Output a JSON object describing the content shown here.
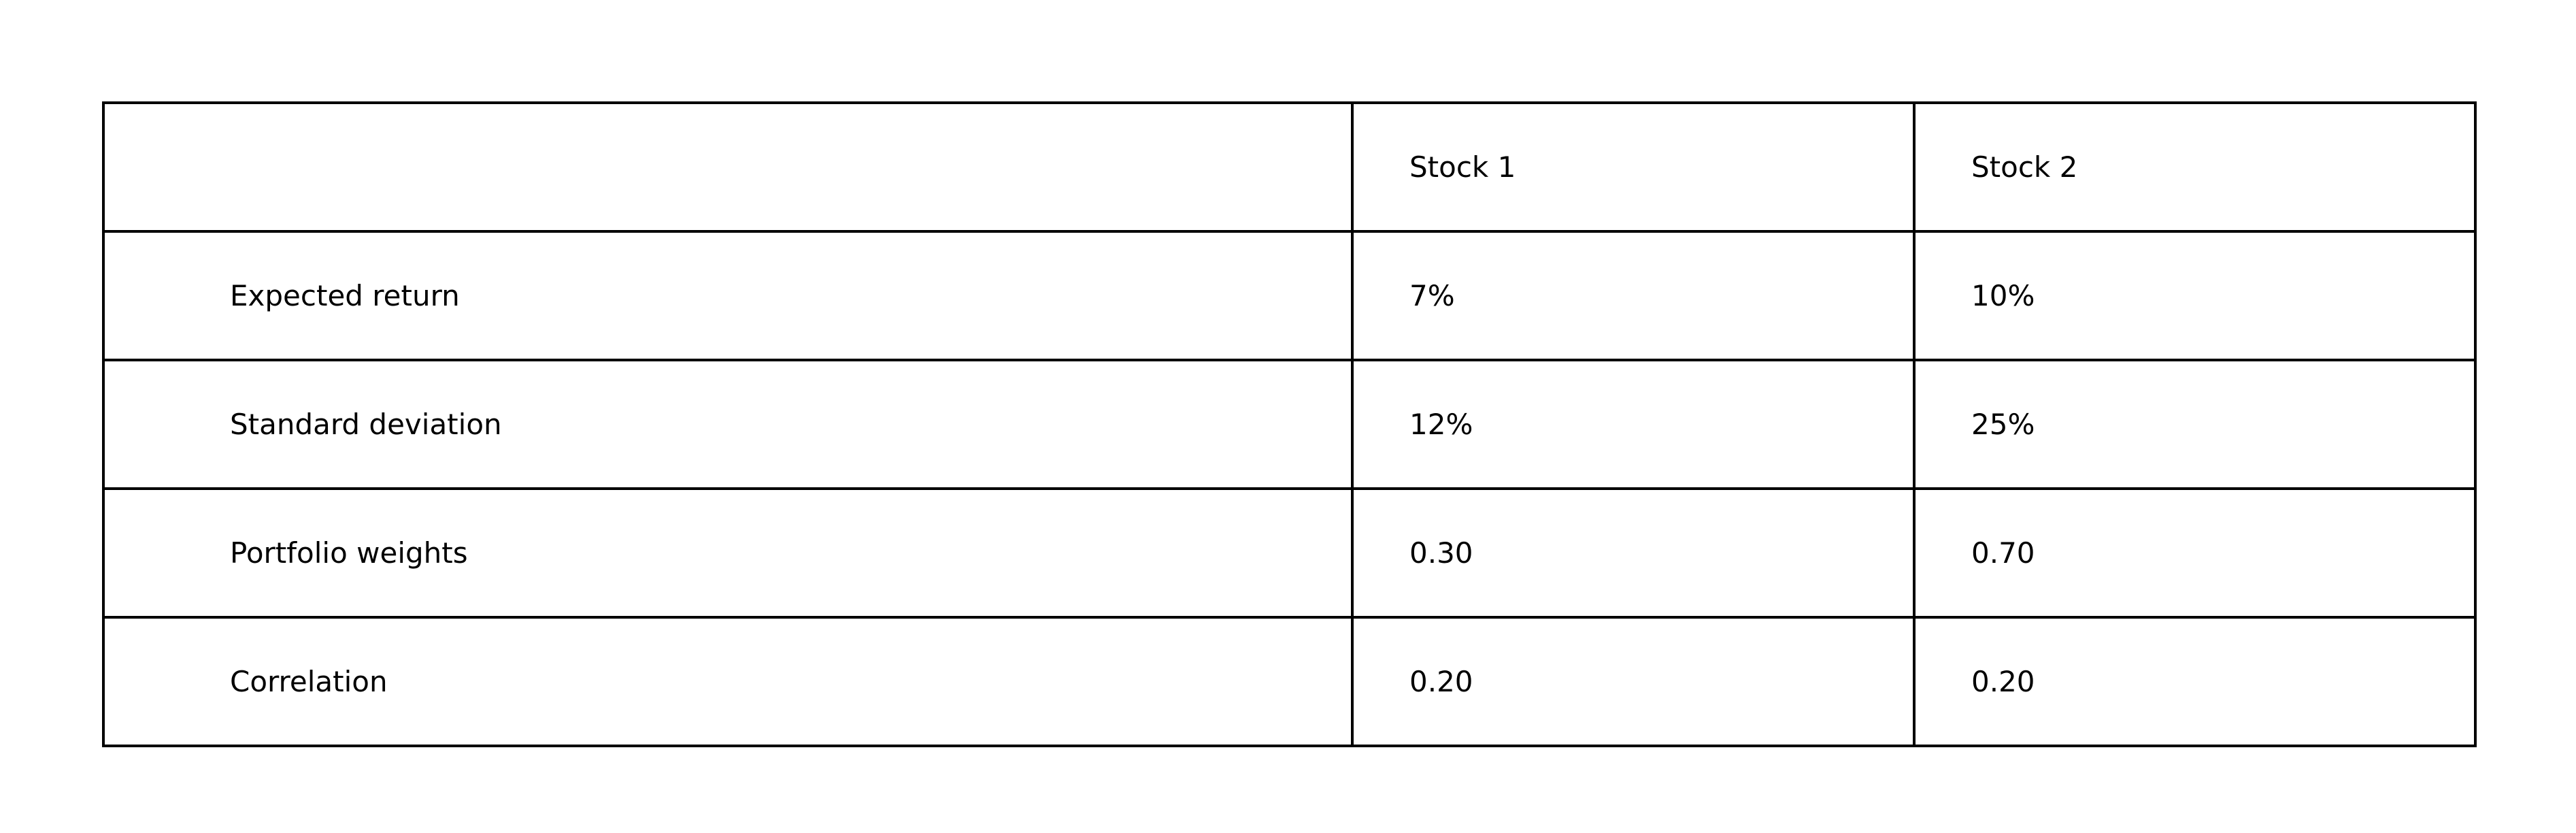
{
  "chart_data": {
    "type": "table",
    "columns": [
      "",
      "Stock 1",
      "Stock 2"
    ],
    "rows": [
      [
        "Expected return",
        "7%",
        "10%"
      ],
      [
        "Standard deviation",
        "12%",
        "25%"
      ],
      [
        "Portfolio weights",
        "0.30",
        "0.70"
      ],
      [
        "Correlation",
        "0.20",
        "0.20"
      ]
    ]
  },
  "colors": {
    "border": "#000000",
    "text": "#000000",
    "background": "#ffffff"
  }
}
